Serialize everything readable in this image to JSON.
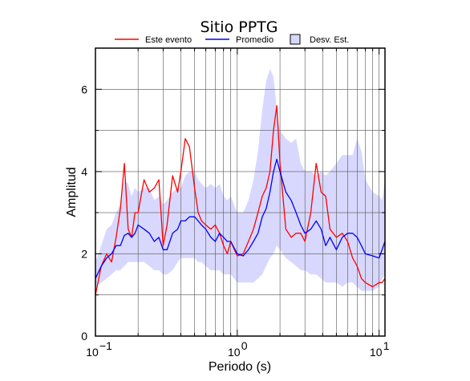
{
  "chart_data": {
    "type": "line",
    "title": "Sitio PPTG",
    "xlabel": "Periodo (s)",
    "ylabel": "Amplitud",
    "x_scale": "log",
    "xlim": [
      0.1,
      11
    ],
    "ylim": [
      0,
      7
    ],
    "grid": true,
    "legend_position": "top",
    "legend": [
      {
        "label": "Este evento",
        "kind": "line",
        "color": "#ff0000"
      },
      {
        "label": "Promedio",
        "kind": "line",
        "color": "#0000ff"
      },
      {
        "label": "Desv. Est.",
        "kind": "patch",
        "color": "#d8d8ff"
      }
    ],
    "y_ticks": [
      {
        "value": 0,
        "label": "0"
      },
      {
        "value": 2,
        "label": "2"
      },
      {
        "value": 4,
        "label": "4"
      },
      {
        "value": 6,
        "label": "6"
      }
    ],
    "x_ticks": [
      {
        "value": 0.1,
        "base": "10",
        "exp": "−1"
      },
      {
        "value": 1,
        "base": "10",
        "exp": "0"
      },
      {
        "value": 10,
        "base": "10",
        "exp": "1"
      }
    ],
    "x": [
      0.1,
      0.11,
      0.12,
      0.13,
      0.14,
      0.15,
      0.16,
      0.17,
      0.18,
      0.19,
      0.2,
      0.22,
      0.24,
      0.26,
      0.28,
      0.3,
      0.32,
      0.35,
      0.38,
      0.4,
      0.43,
      0.46,
      0.5,
      0.53,
      0.56,
      0.6,
      0.65,
      0.7,
      0.75,
      0.8,
      0.85,
      0.9,
      1.0,
      1.1,
      1.2,
      1.3,
      1.4,
      1.5,
      1.6,
      1.7,
      1.8,
      1.9,
      2.0,
      2.2,
      2.4,
      2.6,
      2.8,
      3.0,
      3.3,
      3.6,
      3.9,
      4.2,
      4.5,
      5.0,
      5.5,
      6.0,
      6.5,
      7.0,
      7.5,
      8.0,
      9.0,
      10.0,
      10.5,
      11.0
    ],
    "series": [
      {
        "name": "Este evento",
        "color": "#ff0000",
        "values": [
          1.0,
          1.7,
          2.0,
          1.8,
          2.4,
          3.1,
          4.2,
          2.6,
          2.4,
          3.0,
          3.0,
          3.8,
          3.5,
          3.6,
          3.8,
          2.2,
          2.7,
          3.9,
          3.5,
          4.0,
          4.8,
          4.6,
          3.6,
          3.0,
          2.8,
          2.7,
          2.6,
          2.7,
          2.5,
          2.2,
          2.0,
          2.3,
          1.95,
          2.0,
          2.3,
          2.6,
          3.0,
          3.4,
          3.6,
          4.0,
          5.0,
          5.6,
          4.2,
          2.6,
          2.4,
          2.5,
          2.5,
          2.3,
          3.0,
          4.2,
          3.5,
          3.4,
          2.6,
          2.4,
          2.5,
          2.3,
          1.9,
          1.7,
          1.4,
          1.3,
          1.2,
          1.3,
          1.3,
          1.4
        ]
      },
      {
        "name": "Promedio",
        "color": "#0000ff",
        "values": [
          1.4,
          1.7,
          1.9,
          2.0,
          2.2,
          2.2,
          2.45,
          2.5,
          2.4,
          2.5,
          2.7,
          2.6,
          2.5,
          2.3,
          2.4,
          2.1,
          2.1,
          2.5,
          2.6,
          2.8,
          2.8,
          2.9,
          2.9,
          2.8,
          2.7,
          2.6,
          2.4,
          2.3,
          2.5,
          2.4,
          2.3,
          2.3,
          2.0,
          1.95,
          2.1,
          2.3,
          2.5,
          2.9,
          3.1,
          3.5,
          4.0,
          4.3,
          4.0,
          3.5,
          3.3,
          3.0,
          2.7,
          2.5,
          2.6,
          2.8,
          2.6,
          2.2,
          2.4,
          2.1,
          2.4,
          2.5,
          2.5,
          2.4,
          2.2,
          2.0,
          1.95,
          1.9,
          2.1,
          2.3
        ]
      }
    ],
    "band": {
      "name": "Desv. Est.",
      "color": "#d8d8ff",
      "upper": [
        1.8,
        2.2,
        2.6,
        2.7,
        3.0,
        3.2,
        3.8,
        3.7,
        3.4,
        3.6,
        3.5,
        3.6,
        3.6,
        3.3,
        3.4,
        3.2,
        3.3,
        3.5,
        3.6,
        3.6,
        3.9,
        4.0,
        4.0,
        3.8,
        3.7,
        3.6,
        3.7,
        3.6,
        3.7,
        3.4,
        3.3,
        3.4,
        3.0,
        3.0,
        3.3,
        3.8,
        4.5,
        5.5,
        6.2,
        6.5,
        6.3,
        5.5,
        5.0,
        4.8,
        4.7,
        4.8,
        4.2,
        4.0,
        4.0,
        3.9,
        4.0,
        3.9,
        4.0,
        4.2,
        4.4,
        4.4,
        4.4,
        4.8,
        4.5,
        3.8,
        3.5,
        3.4,
        3.3,
        3.8
      ],
      "lower": [
        1.2,
        1.3,
        1.4,
        1.5,
        1.6,
        1.6,
        1.7,
        1.8,
        1.8,
        1.8,
        1.8,
        1.8,
        1.7,
        1.6,
        1.6,
        1.5,
        1.5,
        1.6,
        1.8,
        1.9,
        1.9,
        1.9,
        1.9,
        1.8,
        1.8,
        1.7,
        1.6,
        1.6,
        1.6,
        1.5,
        1.5,
        1.5,
        1.3,
        1.3,
        1.3,
        1.3,
        1.4,
        1.5,
        1.7,
        1.9,
        2.0,
        2.2,
        2.1,
        1.9,
        1.8,
        1.7,
        1.6,
        1.6,
        1.5,
        1.5,
        1.4,
        1.3,
        1.3,
        1.3,
        1.2,
        1.3,
        1.3,
        1.2,
        1.1,
        1.1,
        1.1,
        1.2,
        1.4,
        1.5
      ]
    }
  }
}
